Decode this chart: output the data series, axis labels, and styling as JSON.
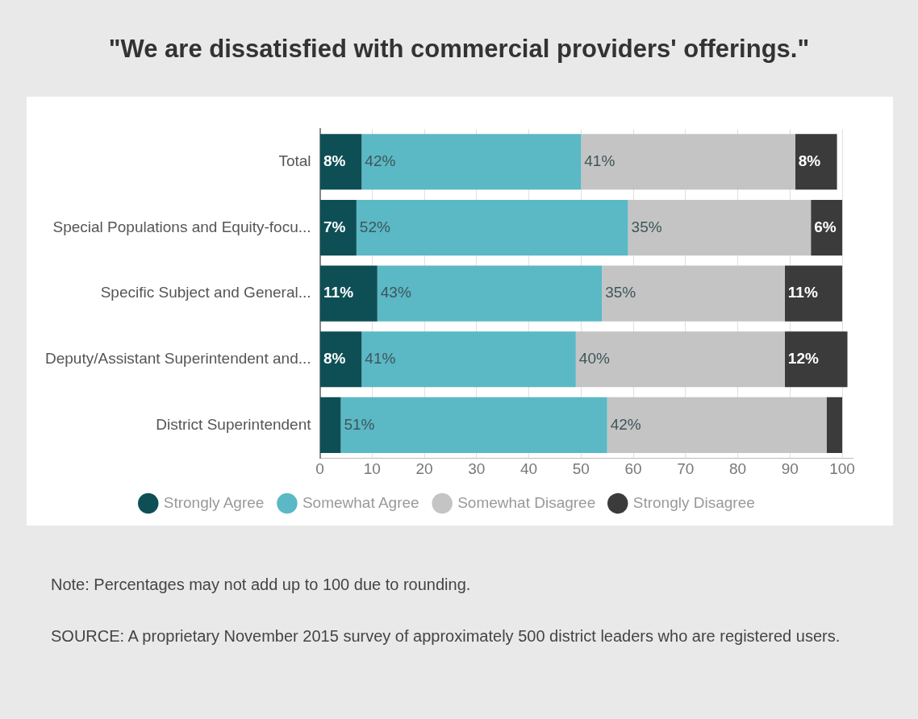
{
  "chart_data": {
    "type": "bar",
    "title": "\"We are dissatisfied with commercial providers' offerings.\"",
    "orientation": "horizontal",
    "stacked": true,
    "categories": [
      "Total",
      "Special Populations and Equity-focu...",
      "Specific Subject and General...",
      "Deputy/Assistant Superintendent and...",
      "District Superintendent"
    ],
    "series": [
      {
        "name": "Strongly Agree",
        "color": "#0d4f55",
        "values": [
          8,
          7,
          11,
          8,
          4
        ],
        "value_labels": [
          "8%",
          "7%",
          "11%",
          "8%",
          null
        ]
      },
      {
        "name": "Somewhat Agree",
        "color": "#5bb8c5",
        "values": [
          42,
          52,
          43,
          41,
          51
        ],
        "value_labels": [
          "42%",
          "52%",
          "43%",
          "41%",
          "51%"
        ]
      },
      {
        "name": "Somewhat Disagree",
        "color": "#c4c4c4",
        "values": [
          41,
          35,
          35,
          40,
          42
        ],
        "value_labels": [
          "41%",
          "35%",
          "35%",
          "40%",
          "42%"
        ]
      },
      {
        "name": "Strongly Disagree",
        "color": "#3b3b3b",
        "values": [
          8,
          6,
          11,
          12,
          3
        ],
        "value_labels": [
          "8%",
          "6%",
          "11%",
          "12%",
          null
        ]
      }
    ],
    "xlim": [
      0,
      102
    ],
    "xticks": [
      0,
      10,
      20,
      30,
      40,
      50,
      60,
      70,
      80,
      90,
      100
    ],
    "grid": "x",
    "legend": "bottom",
    "annotations": [
      "Note: Percentages may not add up to 100 due to rounding.",
      "SOURCE: A proprietary November 2015 survey of approximately 500 district leaders who are registered users."
    ]
  }
}
